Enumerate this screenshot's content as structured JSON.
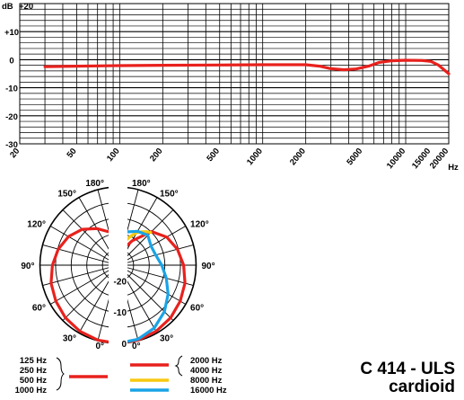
{
  "product": {
    "model": "C 414 - ULS",
    "pattern": "cardioid"
  },
  "colors": {
    "red": "#e8211d",
    "yellow": "#f7c90f",
    "blue": "#1aa3e6",
    "grid": "#000000"
  },
  "chart_data": [
    {
      "type": "line",
      "title": "",
      "xlabel": "Hz",
      "ylabel": "dB",
      "x_scale": "log",
      "xlim": [
        20,
        20000
      ],
      "ylim": [
        -30,
        20
      ],
      "y_ticks": [
        {
          "value": 20,
          "label": "+20"
        },
        {
          "value": 10,
          "label": "+10"
        },
        {
          "value": 0,
          "label": "0"
        },
        {
          "value": -10,
          "label": "-10"
        },
        {
          "value": -20,
          "label": "-20"
        },
        {
          "value": -30,
          "label": "-30"
        }
      ],
      "x_ticks": [
        {
          "value": 20,
          "label": "20"
        },
        {
          "value": 50,
          "label": "50"
        },
        {
          "value": 100,
          "label": "100"
        },
        {
          "value": 200,
          "label": "200"
        },
        {
          "value": 500,
          "label": "500"
        },
        {
          "value": 1000,
          "label": "1000"
        },
        {
          "value": 2000,
          "label": "2000"
        },
        {
          "value": 5000,
          "label": "5000"
        },
        {
          "value": 10000,
          "label": "10000"
        },
        {
          "value": 15000,
          "label": "15000"
        },
        {
          "value": 20000,
          "label": "20000"
        }
      ],
      "grid": true,
      "series": [
        {
          "color": "#e8211d",
          "points": [
            [
              30,
              -2.5
            ],
            [
              50,
              -2.3
            ],
            [
              100,
              -2.1
            ],
            [
              200,
              -2
            ],
            [
              500,
              -1.9
            ],
            [
              1000,
              -1.8
            ],
            [
              2000,
              -1.8
            ],
            [
              2500,
              -2.3
            ],
            [
              3000,
              -3.2
            ],
            [
              3700,
              -3.6
            ],
            [
              4500,
              -3.3
            ],
            [
              5500,
              -2.3
            ],
            [
              6500,
              -1
            ],
            [
              8000,
              -0.4
            ],
            [
              10000,
              -0.2
            ],
            [
              13000,
              -0.3
            ],
            [
              15000,
              -0.6
            ],
            [
              17000,
              -2
            ],
            [
              20000,
              -5
            ]
          ]
        }
      ]
    },
    {
      "type": "polar",
      "title": "",
      "angle_labels": {
        "left": [
          "180°",
          "150°",
          "120°",
          "90°",
          "60°",
          "30°",
          "0°"
        ],
        "right": [
          "180°",
          "150°",
          "120°",
          "90°",
          "60°",
          "30°",
          "0°"
        ]
      },
      "radial_labels": [
        "-20",
        "-10",
        "0"
      ],
      "rlim_db": [
        -25,
        0
      ],
      "legend": [
        {
          "side": "left",
          "entries": [
            "125 Hz",
            "250 Hz",
            "500 Hz",
            "1000 Hz"
          ],
          "color": "#e8211d"
        },
        {
          "side": "right",
          "entries": [
            "2000 Hz",
            "4000 Hz"
          ],
          "color": "#e8211d"
        },
        {
          "side": "right",
          "entries": [
            "8000 Hz"
          ],
          "color": "#f7c90f"
        },
        {
          "side": "right",
          "entries": [
            "16000 Hz"
          ],
          "color": "#1aa3e6"
        }
      ],
      "series": [
        {
          "label": "125–1000 Hz",
          "side": "left",
          "color": "#e8211d",
          "angles": [
            0,
            15,
            30,
            45,
            60,
            75,
            90,
            105,
            120,
            135,
            150,
            165,
            180
          ],
          "db": [
            0,
            -0.2,
            -0.6,
            -1.2,
            -2,
            -2.8,
            -4,
            -5.2,
            -6.7,
            -8.8,
            -11.5,
            -14,
            -15
          ]
        },
        {
          "label": "2000–4000 Hz",
          "side": "right",
          "color": "#e8211d",
          "angles": [
            0,
            15,
            30,
            45,
            60,
            75,
            90,
            105,
            120,
            135,
            150,
            165,
            180
          ],
          "db": [
            0,
            -0.2,
            -0.6,
            -1.2,
            -2,
            -2.8,
            -4,
            -5.3,
            -7,
            -9.8,
            -16,
            -20,
            -21
          ]
        },
        {
          "label": "8000 Hz",
          "side": "right",
          "color": "#f7c90f",
          "angles": [
            135,
            140,
            145,
            150,
            155,
            160,
            165,
            170,
            175,
            180
          ],
          "db": [
            -10.2,
            -11,
            -12,
            -13,
            -14.5,
            -16,
            -17.5,
            -19.5,
            -21,
            -22
          ]
        },
        {
          "label": "16000 Hz",
          "side": "right",
          "color": "#1aa3e6",
          "angles": [
            0,
            15,
            30,
            45,
            60,
            75,
            90,
            105,
            120,
            135,
            150,
            165,
            180
          ],
          "db": [
            0,
            -0.5,
            -1.8,
            -4,
            -6.5,
            -9,
            -11,
            -12.5,
            -12.8,
            -11.5,
            -12.5,
            -14,
            -15.5
          ]
        }
      ]
    }
  ]
}
